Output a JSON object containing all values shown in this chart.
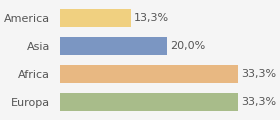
{
  "categories": [
    "America",
    "Asia",
    "Africa",
    "Europa"
  ],
  "values": [
    13.3,
    20.0,
    33.3,
    33.3
  ],
  "labels": [
    "13,3%",
    "20,0%",
    "33,3%",
    "33,3%"
  ],
  "bar_colors": [
    "#f0d080",
    "#7b96c2",
    "#e8b882",
    "#a8bc8a"
  ],
  "background_color": "#f5f5f5",
  "xlim": [
    0,
    40
  ],
  "bar_height": 0.65,
  "label_fontsize": 8,
  "tick_fontsize": 8
}
